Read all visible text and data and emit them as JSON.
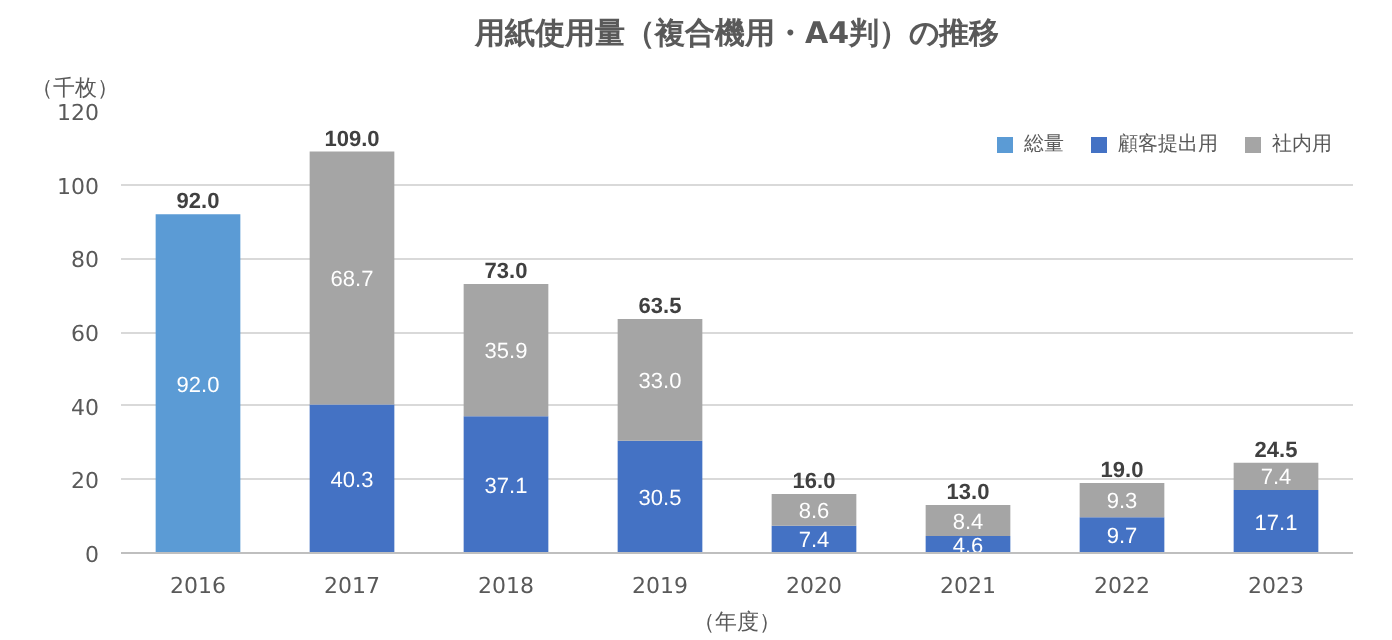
{
  "chart_data": {
    "type": "bar",
    "stacked": true,
    "title": "用紙使用量（複合機用・A4判）の推移",
    "xlabel": "（年度）",
    "ylabel": "（千枚）",
    "categories": [
      "2016",
      "2017",
      "2018",
      "2019",
      "2020",
      "2021",
      "2022",
      "2023"
    ],
    "series": [
      {
        "name": "総量",
        "color": "#5b9bd5",
        "values": [
          92.0,
          null,
          null,
          null,
          null,
          null,
          null,
          null
        ],
        "value_labels": [
          "92.0",
          null,
          null,
          null,
          null,
          null,
          null,
          null
        ]
      },
      {
        "name": "顧客提出用",
        "color": "#4472c4",
        "values": [
          null,
          40.3,
          37.1,
          30.5,
          7.4,
          4.6,
          9.7,
          17.1
        ],
        "value_labels": [
          null,
          "40.3",
          "37.1",
          "30.5",
          "7.4",
          "4.6",
          "9.7",
          "17.1"
        ]
      },
      {
        "name": "社内用",
        "color": "#a5a5a5",
        "values": [
          null,
          68.7,
          35.9,
          33.0,
          8.6,
          8.4,
          9.3,
          7.4
        ],
        "value_labels": [
          null,
          "68.7",
          "35.9",
          "33.0",
          "8.6",
          "8.4",
          "9.3",
          "7.4"
        ]
      }
    ],
    "totals": [
      "92.0",
      "109.0",
      "73.0",
      "63.5",
      "16.0",
      "13.0",
      "19.0",
      "24.5"
    ],
    "ylim": [
      0,
      120
    ],
    "yticks": [
      0,
      20,
      40,
      60,
      80,
      100,
      120
    ],
    "grid": "y",
    "legend": "top right"
  }
}
